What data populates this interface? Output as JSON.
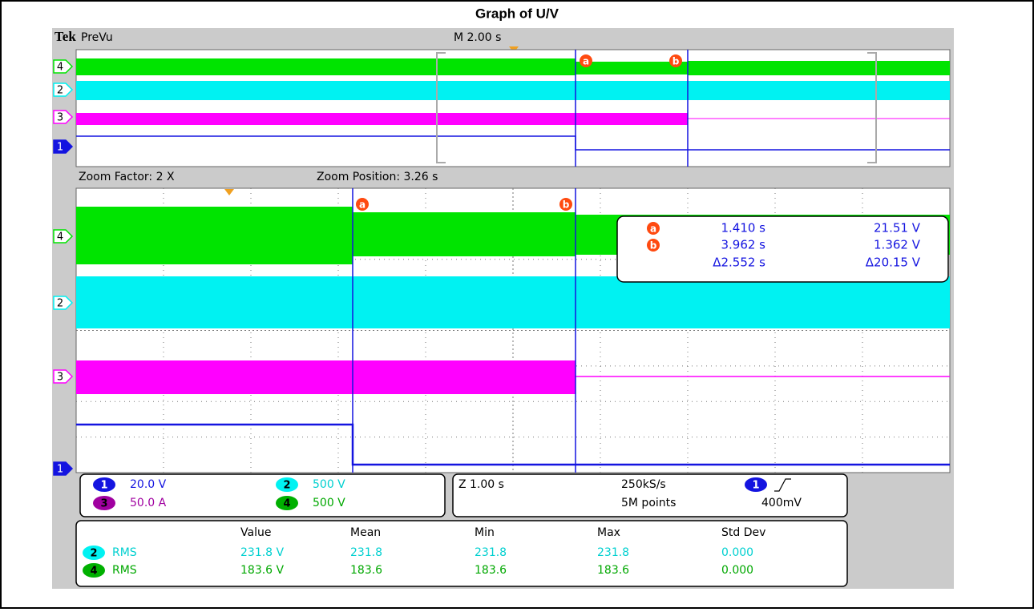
{
  "title": "Graph of U/V",
  "header": {
    "brand": "Tek",
    "mode": "PreVu",
    "timebase": "M 2.00 s"
  },
  "channel_markers": [
    "4",
    "2",
    "3",
    "1"
  ],
  "cursor_markers": [
    "a",
    "b"
  ],
  "zoom": {
    "factor": "Zoom Factor: 2 X",
    "position": "Zoom Position: 3.26 s"
  },
  "cursor_readout": {
    "a": {
      "time": "1.410 s",
      "value": "21.51 V"
    },
    "b": {
      "time": "3.962 s",
      "value": "1.362 V"
    },
    "delta": {
      "time": "Δ2.552 s",
      "value": "Δ20.15 V"
    }
  },
  "channel_settings": [
    {
      "channel": "1",
      "scale": "20.0 V"
    },
    {
      "channel": "2",
      "scale": "500 V"
    },
    {
      "channel": "3",
      "scale": "50.0 A"
    },
    {
      "channel": "4",
      "scale": "500 V"
    }
  ],
  "acquisition": {
    "zoom_time": "Z 1.00 s",
    "sample_rate": "250kS/s",
    "record_length": "5M points",
    "trigger_channel": "1",
    "trigger_level": "400mV"
  },
  "measurements": {
    "columns": [
      "Value",
      "Mean",
      "Min",
      "Max",
      "Std Dev"
    ],
    "rows": [
      {
        "channel": "2",
        "type": "RMS",
        "cells": [
          "231.8 V",
          "231.8",
          "231.8",
          "231.8",
          "0.000"
        ]
      },
      {
        "channel": "4",
        "type": "RMS",
        "cells": [
          "183.6 V",
          "183.6",
          "183.6",
          "183.6",
          "0.000"
        ]
      }
    ]
  }
}
